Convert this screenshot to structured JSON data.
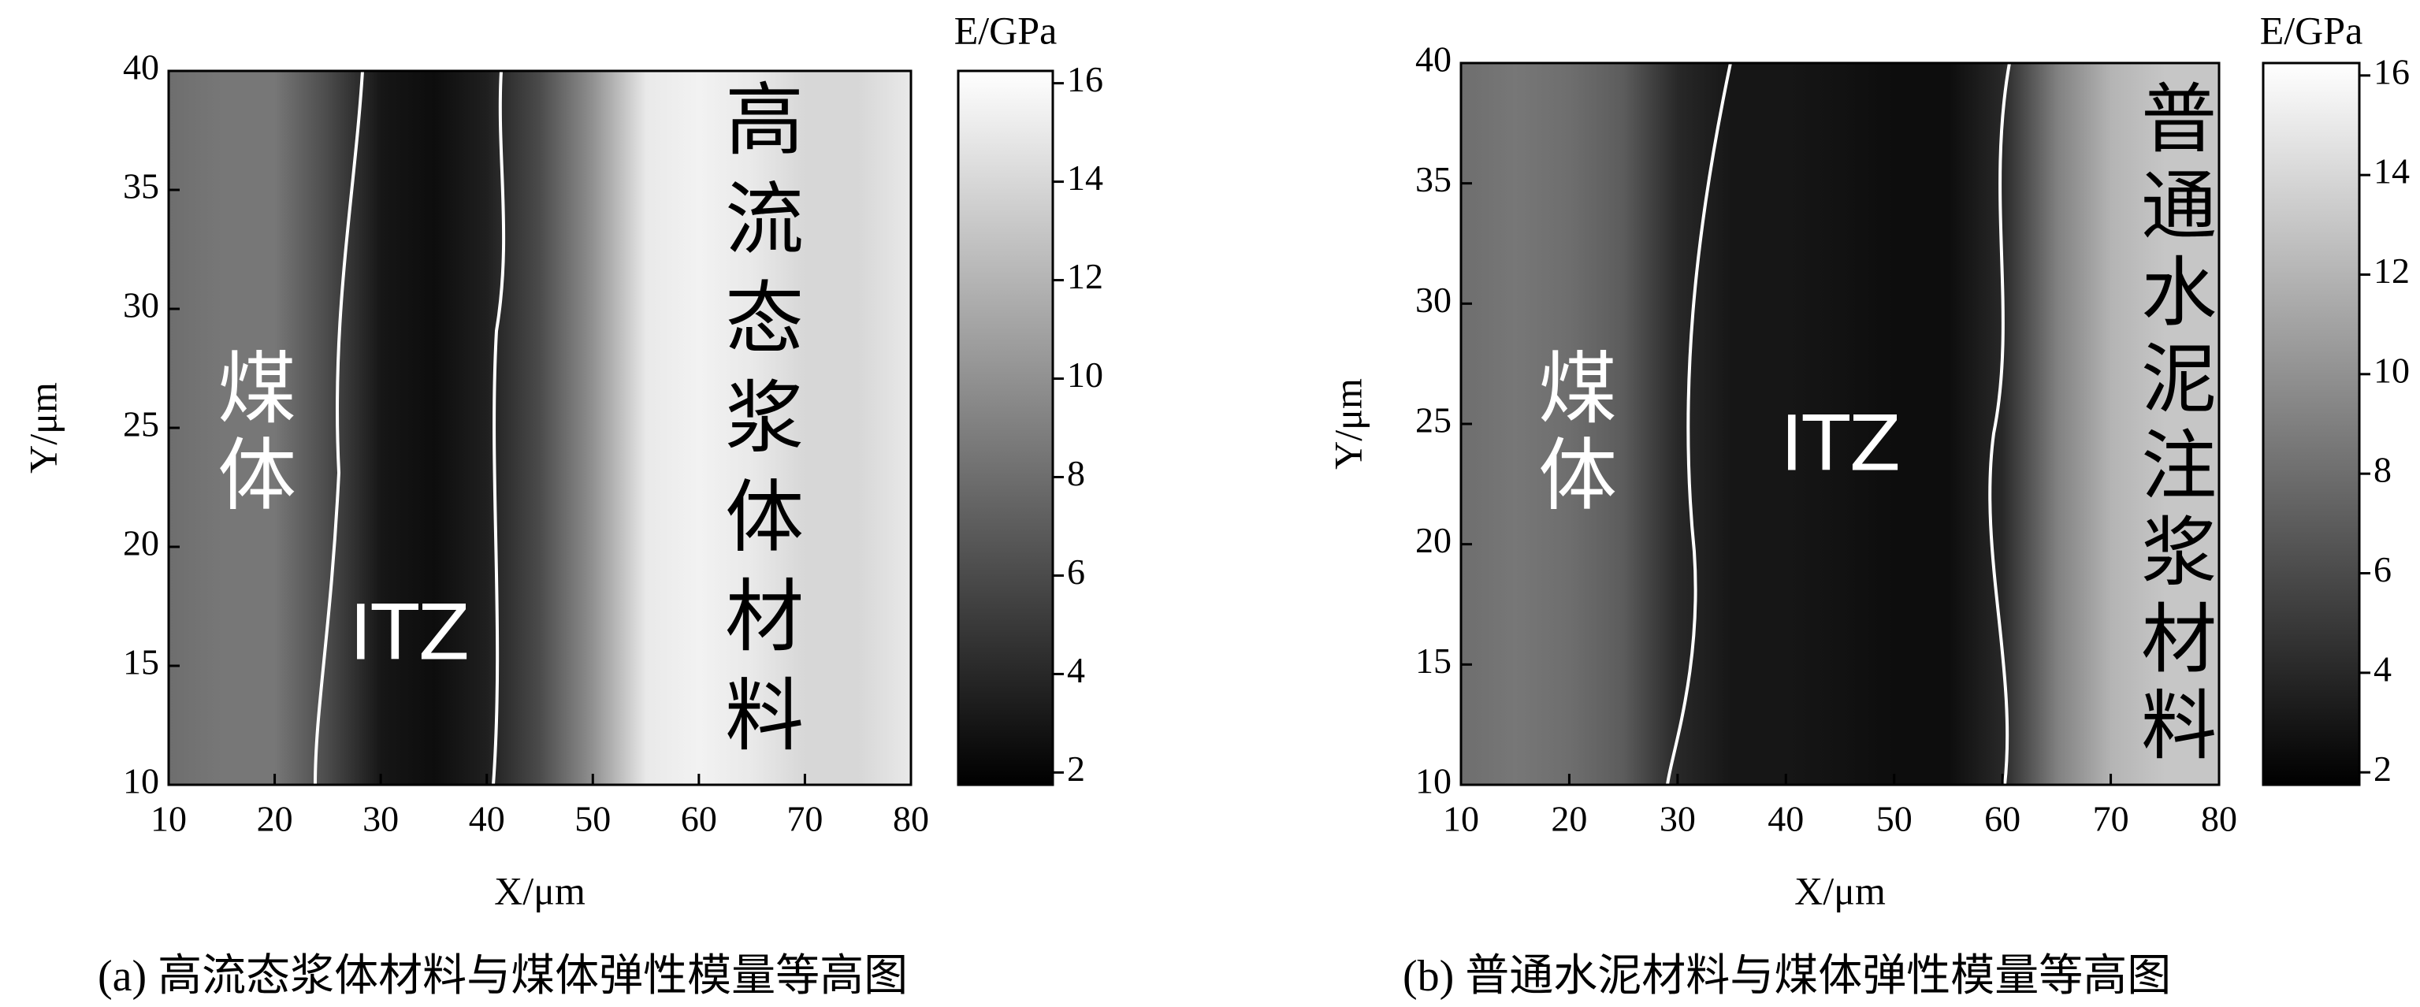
{
  "chart_data": [
    {
      "type": "contour",
      "caption": "(a) 高流态浆体材料与煤体弹性模量等高图",
      "xlabel": "X/μm",
      "ylabel": "Y/μm",
      "colorbar_label": "E/GPa",
      "x": [
        10,
        15,
        20,
        25,
        30,
        35,
        40,
        45,
        50,
        55,
        60,
        65,
        70,
        75,
        80
      ],
      "values": [
        8,
        8.5,
        8.5,
        6,
        3,
        2.5,
        3.5,
        6,
        10,
        15,
        15.5,
        15,
        14,
        14,
        15
      ],
      "xlim": [
        10,
        80
      ],
      "ylim": [
        10,
        40
      ],
      "xticks": [
        10,
        20,
        30,
        40,
        50,
        60,
        70,
        80
      ],
      "yticks": [
        10,
        15,
        20,
        25,
        30,
        35,
        40
      ],
      "clim": [
        1.75,
        16.25
      ],
      "cticks": [
        2,
        4,
        6,
        8,
        10,
        12,
        14,
        16
      ],
      "annotations": [
        {
          "text": "煤体"
        },
        {
          "text": "ITZ"
        },
        {
          "text": "高流态浆体材料"
        }
      ]
    },
    {
      "type": "contour",
      "caption": "(b) 普通水泥材料与煤体弹性模量等高图",
      "xlabel": "X/μm",
      "ylabel": "Y/μm",
      "colorbar_label": "E/GPa",
      "x": [
        10,
        15,
        20,
        25,
        30,
        35,
        40,
        45,
        50,
        55,
        60,
        65,
        70,
        75,
        80
      ],
      "values": [
        8,
        8.5,
        8,
        7,
        4,
        3,
        3,
        2.8,
        2.5,
        2.5,
        4,
        9,
        12,
        13,
        13
      ],
      "xlim": [
        10,
        80
      ],
      "ylim": [
        10,
        40
      ],
      "xticks": [
        10,
        20,
        30,
        40,
        50,
        60,
        70,
        80
      ],
      "yticks": [
        10,
        15,
        20,
        25,
        30,
        35,
        40
      ],
      "clim": [
        1.75,
        16.25
      ],
      "cticks": [
        2,
        4,
        6,
        8,
        10,
        12,
        14,
        16
      ],
      "annotations": [
        {
          "text": "煤体"
        },
        {
          "text": "ITZ"
        },
        {
          "text": "普通水泥注浆材料"
        }
      ]
    }
  ]
}
